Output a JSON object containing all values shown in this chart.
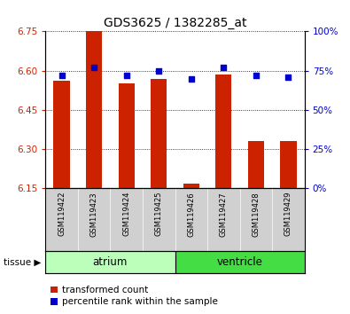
{
  "title": "GDS3625 / 1382285_at",
  "samples": [
    "GSM119422",
    "GSM119423",
    "GSM119424",
    "GSM119425",
    "GSM119426",
    "GSM119427",
    "GSM119428",
    "GSM119429"
  ],
  "bar_values": [
    6.56,
    6.75,
    6.55,
    6.57,
    6.17,
    6.585,
    6.33,
    6.33
  ],
  "bar_base": 6.15,
  "percentile_values": [
    72,
    77,
    72,
    75,
    70,
    77,
    72,
    71
  ],
  "ylim_left": [
    6.15,
    6.75
  ],
  "ylim_right": [
    0,
    100
  ],
  "yticks_left": [
    6.15,
    6.3,
    6.45,
    6.6,
    6.75
  ],
  "yticks_right": [
    0,
    25,
    50,
    75,
    100
  ],
  "bar_color": "#cc2200",
  "dot_color": "#0000cc",
  "tissue_groups": [
    {
      "label": "atrium",
      "indices": [
        0,
        1,
        2,
        3
      ],
      "color": "#bbffbb"
    },
    {
      "label": "ventricle",
      "indices": [
        4,
        5,
        6,
        7
      ],
      "color": "#44dd44"
    }
  ],
  "sample_bg_color": "#d0d0d0",
  "legend_red_label": "transformed count",
  "legend_blue_label": "percentile rank within the sample",
  "tissue_label": "tissue",
  "background_color": "#ffffff"
}
